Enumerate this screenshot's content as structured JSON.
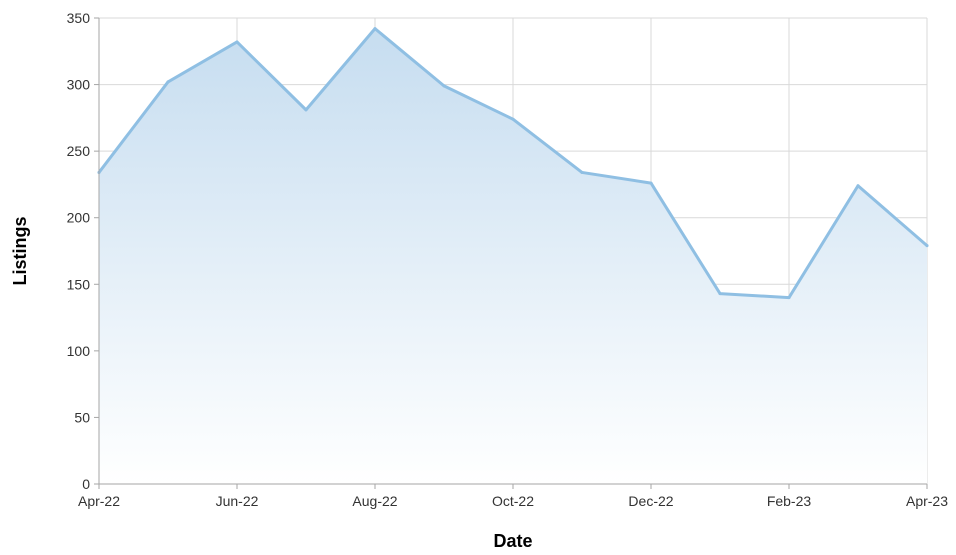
{
  "chart_data": {
    "type": "area",
    "title": "",
    "xlabel": "Date",
    "ylabel": "Listings",
    "x": [
      "Apr-22",
      "May-22",
      "Jun-22",
      "Jul-22",
      "Aug-22",
      "Sep-22",
      "Oct-22",
      "Nov-22",
      "Dec-22",
      "Jan-23",
      "Feb-23",
      "Mar-23",
      "Apr-23"
    ],
    "x_tick_labels": [
      "Apr-22",
      "Jun-22",
      "Aug-22",
      "Oct-22",
      "Dec-22",
      "Feb-23",
      "Apr-23"
    ],
    "series": [
      {
        "values": [
          234,
          302,
          332,
          281,
          342,
          299,
          274,
          234,
          226,
          143,
          140,
          224,
          179
        ]
      }
    ],
    "ylim": [
      0,
      350
    ],
    "y_ticks": [
      0,
      50,
      100,
      150,
      200,
      250,
      300,
      350
    ],
    "grid": true,
    "legend": "none",
    "colors": {
      "line": "#8fbfe3",
      "fill_top": "#c6ddf0",
      "fill_bottom": "#ffffff",
      "grid": "#d9d9d9",
      "axis": "#a6a6a6"
    }
  }
}
